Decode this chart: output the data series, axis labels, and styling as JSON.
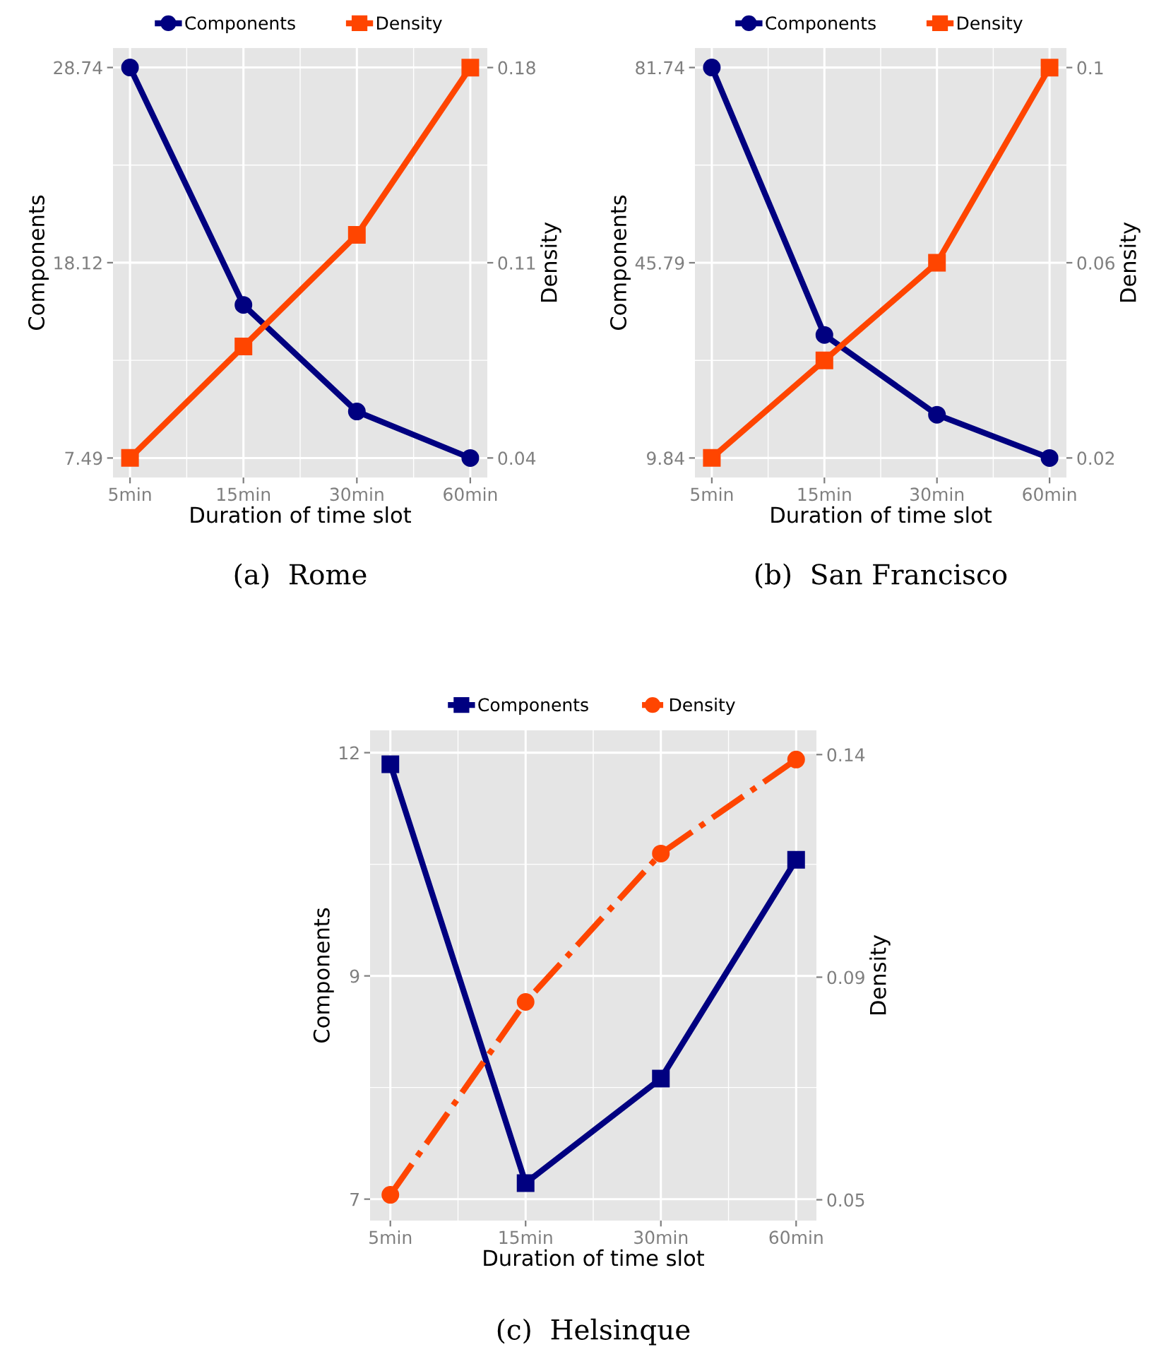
{
  "chart_data": [
    {
      "type": "line",
      "categories": [
        "5min",
        "15min",
        "30min",
        "60min"
      ],
      "xlabel": "Duration of time slot",
      "ylabel": "Components",
      "y2label": "Density",
      "series": [
        {
          "name": "Components",
          "color": "#000080",
          "values": [
            28.74,
            15.82,
            10.02,
            7.49
          ],
          "marker": "circle",
          "line_style": "solid"
        },
        {
          "name": "Density",
          "color": "#ff4500",
          "values": [
            0.04,
            0.08,
            0.12,
            0.18
          ],
          "marker": "square",
          "line_style": "solid",
          "axis": "y2"
        }
      ],
      "ylim": [
        6.43,
        29.8
      ],
      "yticks": [
        7.49,
        18.12,
        28.74
      ],
      "y2lim": [
        0.033,
        0.187
      ],
      "y2ticks": [
        0.04,
        0.11,
        0.18
      ],
      "grid": true,
      "legend": "top",
      "annotations": [
        "(a)  Rome"
      ]
    },
    {
      "type": "line",
      "categories": [
        "5min",
        "15min",
        "30min",
        "60min"
      ],
      "xlabel": "Duration of time slot",
      "ylabel": "Components",
      "y2label": "Density",
      "series": [
        {
          "name": "Components",
          "color": "#000080",
          "values": [
            81.74,
            32.5,
            17.8,
            9.84
          ],
          "marker": "circle",
          "line_style": "solid"
        },
        {
          "name": "Density",
          "color": "#ff4500",
          "values": [
            0.02,
            0.04,
            0.06,
            0.1
          ],
          "marker": "square",
          "line_style": "solid",
          "axis": "y2"
        }
      ],
      "ylim": [
        6.25,
        85.33
      ],
      "yticks": [
        9.84,
        45.79,
        81.74
      ],
      "y2lim": [
        0.016,
        0.104
      ],
      "y2ticks": [
        0.02,
        0.06,
        0.1
      ],
      "grid": true,
      "legend": "top",
      "annotations": [
        "(b)  San Francisco"
      ]
    },
    {
      "type": "line",
      "categories": [
        "5min",
        "15min",
        "30min",
        "60min"
      ],
      "xlabel": "Duration of time slot",
      "ylabel": "Components",
      "y2label": "Density",
      "series": [
        {
          "name": "Components",
          "color": "#000080",
          "values": [
            11.87,
            7.18,
            8.35,
            10.8
          ],
          "marker": "square",
          "line_style": "solid"
        },
        {
          "name": "Density",
          "color": "#ff4500",
          "values": [
            0.051,
            0.09,
            0.12,
            0.139
          ],
          "marker": "circle",
          "line_style": "dashdot",
          "axis": "y2"
        }
      ],
      "ylim": [
        6.76,
        12.25
      ],
      "yticks": [
        7,
        {
          "value": 9.5,
          "label": "9"
        },
        12
      ],
      "y2lim": [
        0.0458,
        0.1449
      ],
      "y2ticks": [
        0.05,
        {
          "value": 0.095,
          "label": "0.09"
        },
        0.14
      ],
      "grid": true,
      "legend": "top",
      "annotations": [
        "(c)  Helsinque"
      ]
    }
  ]
}
